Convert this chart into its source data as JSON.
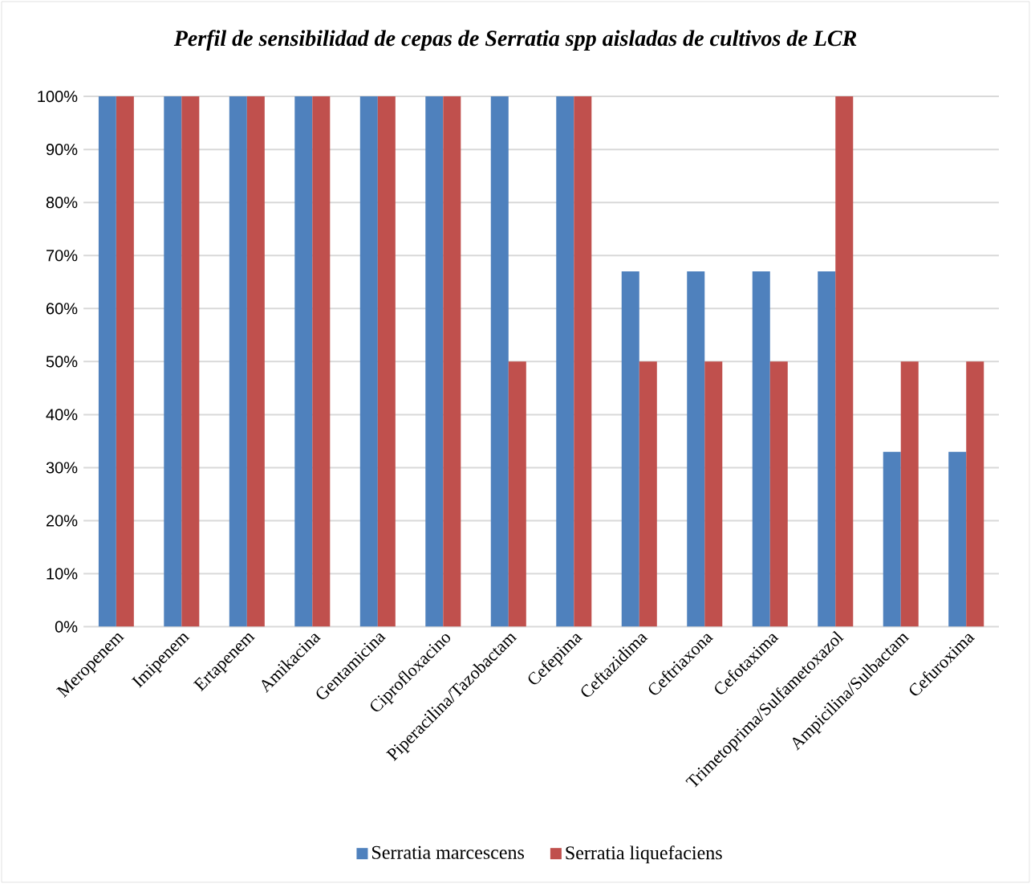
{
  "chart_data": {
    "type": "bar",
    "title": "Perfil de sensibilidad de cepas de Serratia spp aisladas de cultivos de LCR",
    "categories": [
      "Meropenem",
      "Imipenem",
      "Ertapenem",
      "Amikacina",
      "Gentamicina",
      "Ciprofloxacino",
      "Piperacilina/Tazobactam",
      "Cefepima",
      "Ceftazidima",
      "Ceftriaxona",
      "Cefotaxima",
      "Trimetoprima/Sulfametoxazol",
      "Ampicilina/Sulbactam",
      "Cefuroxima"
    ],
    "series": [
      {
        "name": "Serratia marcescens",
        "color": "#4f81bd",
        "values": [
          100,
          100,
          100,
          100,
          100,
          100,
          100,
          100,
          67,
          67,
          67,
          67,
          33,
          33
        ]
      },
      {
        "name": "Serratia liquefaciens",
        "color": "#c0504d",
        "values": [
          100,
          100,
          100,
          100,
          100,
          100,
          50,
          100,
          50,
          50,
          50,
          100,
          50,
          50
        ]
      }
    ],
    "ylim": [
      0,
      100
    ],
    "yticks": [
      {
        "value": 0,
        "label": "0%"
      },
      {
        "value": 10,
        "label": "10%"
      },
      {
        "value": 20,
        "label": "20%"
      },
      {
        "value": 30,
        "label": "30%"
      },
      {
        "value": 40,
        "label": "40%"
      },
      {
        "value": 50,
        "label": "50%"
      },
      {
        "value": 60,
        "label": "60%"
      },
      {
        "value": 70,
        "label": "70%"
      },
      {
        "value": 80,
        "label": "80%"
      },
      {
        "value": 90,
        "label": "90%"
      },
      {
        "value": 100,
        "label": "100%"
      }
    ],
    "grid": "y",
    "legend": "bottom"
  }
}
